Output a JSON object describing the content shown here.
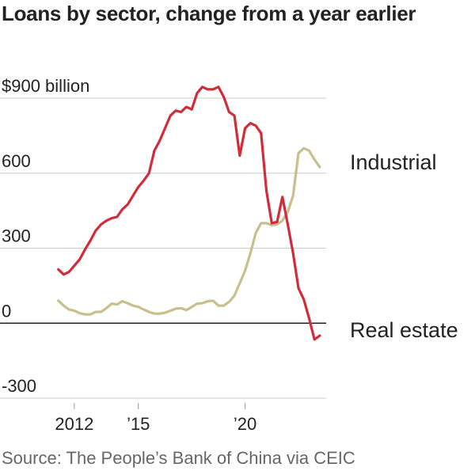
{
  "title": "Loans by sector, change from a year earlier",
  "source": "Source: The People’s Bank of China via CEIC",
  "colors": {
    "industrial": "#c9bf8d",
    "real_estate": "#d22c3b",
    "grid": "#cccccc",
    "zero": "#222222"
  },
  "chart_data": {
    "type": "line",
    "title": "Loans by sector, change from a year earlier",
    "ylim": [
      -300,
      900
    ],
    "xlim": [
      2011.3,
      2023.8
    ],
    "grid": true,
    "y_ticks": [
      {
        "value": 900,
        "label": "$900 billion"
      },
      {
        "value": 600,
        "label": "600"
      },
      {
        "value": 300,
        "label": "300"
      },
      {
        "value": 0,
        "label": "0"
      },
      {
        "value": -300,
        "label": "-300"
      }
    ],
    "x_ticks": [
      {
        "value": 2012,
        "label": "2012"
      },
      {
        "value": 2015,
        "label": "’15"
      },
      {
        "value": 2020,
        "label": "’20"
      }
    ],
    "series": [
      {
        "name": "Industrial",
        "color": "#c9bf8d",
        "x": [
          2011.25,
          2011.5,
          2011.75,
          2012.0,
          2012.25,
          2012.5,
          2012.75,
          2013.0,
          2013.25,
          2013.5,
          2013.75,
          2014.0,
          2014.25,
          2014.5,
          2014.75,
          2015.0,
          2015.25,
          2015.5,
          2015.75,
          2016.0,
          2016.25,
          2016.5,
          2016.75,
          2017.0,
          2017.25,
          2017.5,
          2017.75,
          2018.0,
          2018.25,
          2018.5,
          2018.75,
          2019.0,
          2019.25,
          2019.5,
          2019.75,
          2020.0,
          2020.25,
          2020.5,
          2020.75,
          2021.0,
          2021.25,
          2021.5,
          2021.75,
          2022.0,
          2022.25,
          2022.5,
          2022.75,
          2023.0,
          2023.25,
          2023.5
        ],
        "values": [
          90,
          70,
          55,
          50,
          40,
          35,
          35,
          45,
          45,
          60,
          78,
          75,
          88,
          80,
          70,
          65,
          55,
          45,
          38,
          38,
          42,
          50,
          58,
          60,
          52,
          65,
          78,
          80,
          88,
          90,
          70,
          70,
          85,
          110,
          160,
          210,
          280,
          360,
          400,
          400,
          392,
          395,
          410,
          445,
          510,
          680,
          700,
          690,
          655,
          625
        ]
      },
      {
        "name": "Real estate",
        "color": "#d22c3b",
        "x": [
          2011.25,
          2011.5,
          2011.75,
          2012.0,
          2012.25,
          2012.5,
          2012.75,
          2013.0,
          2013.25,
          2013.5,
          2013.75,
          2014.0,
          2014.25,
          2014.5,
          2014.75,
          2015.0,
          2015.25,
          2015.5,
          2015.75,
          2016.0,
          2016.25,
          2016.5,
          2016.75,
          2017.0,
          2017.25,
          2017.5,
          2017.75,
          2018.0,
          2018.25,
          2018.5,
          2018.75,
          2019.0,
          2019.25,
          2019.5,
          2019.75,
          2020.0,
          2020.25,
          2020.5,
          2020.75,
          2021.0,
          2021.25,
          2021.5,
          2021.75,
          2022.0,
          2022.25,
          2022.5,
          2022.75,
          2023.0,
          2023.25,
          2023.5
        ],
        "values": [
          215,
          195,
          205,
          230,
          255,
          295,
          330,
          370,
          395,
          410,
          420,
          425,
          455,
          475,
          510,
          545,
          570,
          600,
          690,
          730,
          780,
          830,
          850,
          845,
          865,
          855,
          920,
          945,
          935,
          935,
          945,
          905,
          845,
          830,
          670,
          780,
          800,
          790,
          760,
          530,
          400,
          405,
          505,
          395,
          280,
          140,
          95,
          20,
          -65,
          -50
        ]
      }
    ],
    "series_labels": [
      "Industrial",
      "Real estate"
    ]
  }
}
